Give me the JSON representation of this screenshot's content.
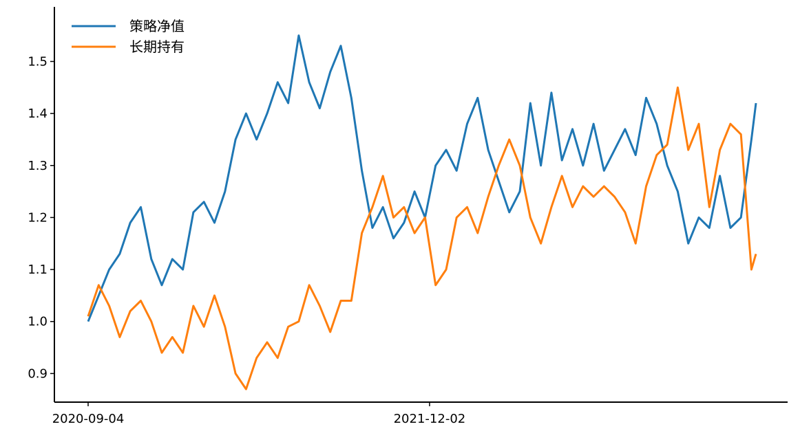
{
  "chart_data": {
    "type": "line",
    "title": "",
    "xlabel": "",
    "ylabel": "",
    "x_range": [
      "2020-09-04",
      "2023-02-09"
    ],
    "x_ticks": [
      "2020-09-04",
      "2021-12-02"
    ],
    "ylim": [
      0.845,
      1.605
    ],
    "y_ticks": [
      0.9,
      1.0,
      1.1,
      1.2,
      1.3,
      1.4,
      1.5
    ],
    "y_tick_labels": [
      "0.9",
      "1.0",
      "1.1",
      "1.2",
      "1.3",
      "1.4",
      "1.5"
    ],
    "grid": false,
    "legend_position": "top-left",
    "series": [
      {
        "name": "策略净值",
        "color": "#1f77b4",
        "points": [
          [
            "2020-09-04",
            1.0
          ],
          [
            "2020-09-18",
            1.05
          ],
          [
            "2020-10-02",
            1.1
          ],
          [
            "2020-10-16",
            1.13
          ],
          [
            "2020-10-30",
            1.19
          ],
          [
            "2020-11-13",
            1.22
          ],
          [
            "2020-11-27",
            1.12
          ],
          [
            "2020-12-11",
            1.07
          ],
          [
            "2020-12-25",
            1.12
          ],
          [
            "2021-01-08",
            1.1
          ],
          [
            "2021-01-22",
            1.21
          ],
          [
            "2021-02-05",
            1.23
          ],
          [
            "2021-02-19",
            1.19
          ],
          [
            "2021-03-05",
            1.25
          ],
          [
            "2021-03-19",
            1.35
          ],
          [
            "2021-04-02",
            1.4
          ],
          [
            "2021-04-16",
            1.35
          ],
          [
            "2021-04-30",
            1.4
          ],
          [
            "2021-05-14",
            1.46
          ],
          [
            "2021-05-28",
            1.42
          ],
          [
            "2021-06-11",
            1.55
          ],
          [
            "2021-06-25",
            1.46
          ],
          [
            "2021-07-09",
            1.41
          ],
          [
            "2021-07-23",
            1.48
          ],
          [
            "2021-08-06",
            1.53
          ],
          [
            "2021-08-20",
            1.43
          ],
          [
            "2021-09-03",
            1.29
          ],
          [
            "2021-09-17",
            1.18
          ],
          [
            "2021-10-01",
            1.22
          ],
          [
            "2021-10-15",
            1.16
          ],
          [
            "2021-10-29",
            1.19
          ],
          [
            "2021-11-12",
            1.25
          ],
          [
            "2021-11-26",
            1.2
          ],
          [
            "2021-12-10",
            1.3
          ],
          [
            "2021-12-24",
            1.33
          ],
          [
            "2022-01-07",
            1.29
          ],
          [
            "2022-01-21",
            1.38
          ],
          [
            "2022-02-04",
            1.43
          ],
          [
            "2022-02-18",
            1.33
          ],
          [
            "2022-03-04",
            1.27
          ],
          [
            "2022-03-18",
            1.21
          ],
          [
            "2022-04-01",
            1.25
          ],
          [
            "2022-04-15",
            1.42
          ],
          [
            "2022-04-29",
            1.3
          ],
          [
            "2022-05-13",
            1.44
          ],
          [
            "2022-05-27",
            1.31
          ],
          [
            "2022-06-10",
            1.37
          ],
          [
            "2022-06-24",
            1.3
          ],
          [
            "2022-07-08",
            1.38
          ],
          [
            "2022-07-22",
            1.29
          ],
          [
            "2022-08-05",
            1.33
          ],
          [
            "2022-08-19",
            1.37
          ],
          [
            "2022-09-02",
            1.32
          ],
          [
            "2022-09-16",
            1.43
          ],
          [
            "2022-09-30",
            1.38
          ],
          [
            "2022-10-14",
            1.3
          ],
          [
            "2022-10-28",
            1.25
          ],
          [
            "2022-11-11",
            1.15
          ],
          [
            "2022-11-25",
            1.2
          ],
          [
            "2022-12-09",
            1.18
          ],
          [
            "2022-12-23",
            1.28
          ],
          [
            "2023-01-06",
            1.18
          ],
          [
            "2023-01-20",
            1.2
          ],
          [
            "2023-02-03",
            1.35
          ],
          [
            "2023-02-09",
            1.42
          ]
        ]
      },
      {
        "name": "长期持有",
        "color": "#ff7f0e",
        "points": [
          [
            "2020-09-04",
            1.01
          ],
          [
            "2020-09-18",
            1.07
          ],
          [
            "2020-10-02",
            1.03
          ],
          [
            "2020-10-16",
            0.97
          ],
          [
            "2020-10-30",
            1.02
          ],
          [
            "2020-11-13",
            1.04
          ],
          [
            "2020-11-27",
            1.0
          ],
          [
            "2020-12-11",
            0.94
          ],
          [
            "2020-12-25",
            0.97
          ],
          [
            "2021-01-08",
            0.94
          ],
          [
            "2021-01-22",
            1.03
          ],
          [
            "2021-02-05",
            0.99
          ],
          [
            "2021-02-19",
            1.05
          ],
          [
            "2021-03-05",
            0.99
          ],
          [
            "2021-03-19",
            0.9
          ],
          [
            "2021-04-02",
            0.87
          ],
          [
            "2021-04-16",
            0.93
          ],
          [
            "2021-04-30",
            0.96
          ],
          [
            "2021-05-14",
            0.93
          ],
          [
            "2021-05-28",
            0.99
          ],
          [
            "2021-06-11",
            1.0
          ],
          [
            "2021-06-25",
            1.07
          ],
          [
            "2021-07-09",
            1.03
          ],
          [
            "2021-07-23",
            0.98
          ],
          [
            "2021-08-06",
            1.04
          ],
          [
            "2021-08-20",
            1.04
          ],
          [
            "2021-09-03",
            1.17
          ],
          [
            "2021-09-17",
            1.22
          ],
          [
            "2021-10-01",
            1.28
          ],
          [
            "2021-10-15",
            1.2
          ],
          [
            "2021-10-29",
            1.22
          ],
          [
            "2021-11-12",
            1.17
          ],
          [
            "2021-11-26",
            1.2
          ],
          [
            "2021-12-10",
            1.07
          ],
          [
            "2021-12-24",
            1.1
          ],
          [
            "2022-01-07",
            1.2
          ],
          [
            "2022-01-21",
            1.22
          ],
          [
            "2022-02-04",
            1.17
          ],
          [
            "2022-02-18",
            1.24
          ],
          [
            "2022-03-04",
            1.3
          ],
          [
            "2022-03-18",
            1.35
          ],
          [
            "2022-04-01",
            1.3
          ],
          [
            "2022-04-15",
            1.2
          ],
          [
            "2022-04-29",
            1.15
          ],
          [
            "2022-05-13",
            1.22
          ],
          [
            "2022-05-27",
            1.28
          ],
          [
            "2022-06-10",
            1.22
          ],
          [
            "2022-06-24",
            1.26
          ],
          [
            "2022-07-08",
            1.24
          ],
          [
            "2022-07-22",
            1.26
          ],
          [
            "2022-08-05",
            1.24
          ],
          [
            "2022-08-19",
            1.21
          ],
          [
            "2022-09-02",
            1.15
          ],
          [
            "2022-09-16",
            1.26
          ],
          [
            "2022-09-30",
            1.32
          ],
          [
            "2022-10-14",
            1.34
          ],
          [
            "2022-10-28",
            1.45
          ],
          [
            "2022-11-11",
            1.33
          ],
          [
            "2022-11-25",
            1.38
          ],
          [
            "2022-12-09",
            1.22
          ],
          [
            "2022-12-23",
            1.33
          ],
          [
            "2023-01-06",
            1.38
          ],
          [
            "2023-01-20",
            1.36
          ],
          [
            "2023-02-03",
            1.1
          ],
          [
            "2023-02-09",
            1.13
          ]
        ]
      }
    ]
  }
}
